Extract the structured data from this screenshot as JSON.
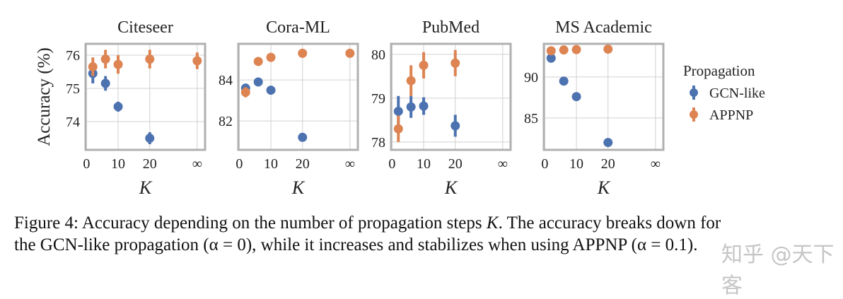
{
  "figure": {
    "ylabel": "Accuracy (%)",
    "xlabel": "K",
    "legend": {
      "title": "Propagation",
      "placement": "right",
      "entries": [
        {
          "name": "GCN-like",
          "color": "#4c72b0"
        },
        {
          "name": "APPNP",
          "color": "#dd8452"
        }
      ]
    },
    "caption": {
      "prefix": "Figure 4: Accuracy depending on the number of propagation steps ",
      "k": "K",
      "line1_rest": ". The accuracy breaks down for",
      "line2": "the GCN-like propagation (α = 0), while it increases and stabilizes when using APPNP (α = 0.1)."
    },
    "watermark": "知乎 @天下客"
  },
  "chart_data": [
    {
      "type": "scatter",
      "title": "Citeseer",
      "xlabel": "K",
      "ylabel": "Accuracy (%)",
      "x": [
        "2",
        "6",
        "10",
        "20",
        "∞"
      ],
      "xticks": [
        "0",
        "10",
        "20",
        "∞"
      ],
      "yticks": [
        74,
        75,
        76
      ],
      "ylim": [
        73.15,
        76.34
      ],
      "grid": true,
      "series": [
        {
          "name": "GCN-like",
          "values": [
            75.45,
            75.15,
            74.45,
            73.5,
            null
          ],
          "err": [
            0.3,
            0.22,
            0.15,
            0.18,
            null
          ]
        },
        {
          "name": "APPNP",
          "values": [
            75.65,
            75.88,
            75.72,
            75.88,
            75.83
          ],
          "err": [
            0.28,
            0.28,
            0.28,
            0.28,
            0.25
          ]
        }
      ]
    },
    {
      "type": "scatter",
      "title": "Cora-ML",
      "xlabel": "K",
      "ylabel": "",
      "x": [
        "2",
        "6",
        "10",
        "20",
        "∞"
      ],
      "xticks": [
        "0",
        "10",
        "20",
        "∞"
      ],
      "yticks": [
        82,
        84
      ],
      "ylim": [
        80.59,
        85.76
      ],
      "grid": true,
      "series": [
        {
          "name": "GCN-like",
          "values": [
            83.6,
            83.9,
            83.5,
            81.2,
            null
          ],
          "err": [
            0.2,
            0.2,
            0.15,
            0.2,
            null
          ]
        },
        {
          "name": "APPNP",
          "values": [
            83.4,
            84.9,
            85.1,
            85.3,
            85.3
          ],
          "err": [
            0.25,
            0.2,
            0.2,
            0.15,
            0.15
          ]
        }
      ]
    },
    {
      "type": "scatter",
      "title": "PubMed",
      "xlabel": "K",
      "ylabel": "",
      "x": [
        "2",
        "6",
        "10",
        "20",
        "∞"
      ],
      "xticks": [
        "0",
        "10",
        "20",
        "∞"
      ],
      "yticks": [
        78,
        79,
        80
      ],
      "ylim": [
        77.82,
        80.24
      ],
      "grid": true,
      "series": [
        {
          "name": "GCN-like",
          "values": [
            78.7,
            78.8,
            78.82,
            78.37,
            null
          ],
          "err": [
            0.35,
            0.25,
            0.2,
            0.25,
            null
          ]
        },
        {
          "name": "APPNP",
          "values": [
            78.3,
            79.4,
            79.75,
            79.8,
            null
          ],
          "err": [
            0.3,
            0.35,
            0.3,
            0.3,
            null
          ]
        }
      ]
    },
    {
      "type": "scatter",
      "title": "MS Academic",
      "xlabel": "K",
      "ylabel": "",
      "x": [
        "2",
        "6",
        "10",
        "20",
        "∞"
      ],
      "xticks": [
        "0",
        "10",
        "20",
        "∞"
      ],
      "yticks": [
        85,
        90
      ],
      "ylim": [
        81.1,
        94.05
      ],
      "grid": true,
      "series": [
        {
          "name": "GCN-like",
          "values": [
            92.3,
            89.5,
            87.6,
            82.0,
            null
          ],
          "err": [
            0.1,
            0.1,
            0.1,
            0.1,
            null
          ]
        },
        {
          "name": "APPNP",
          "values": [
            93.2,
            93.3,
            93.35,
            93.4,
            null
          ],
          "err": [
            0.1,
            0.1,
            0.1,
            0.1,
            null
          ]
        }
      ]
    }
  ]
}
